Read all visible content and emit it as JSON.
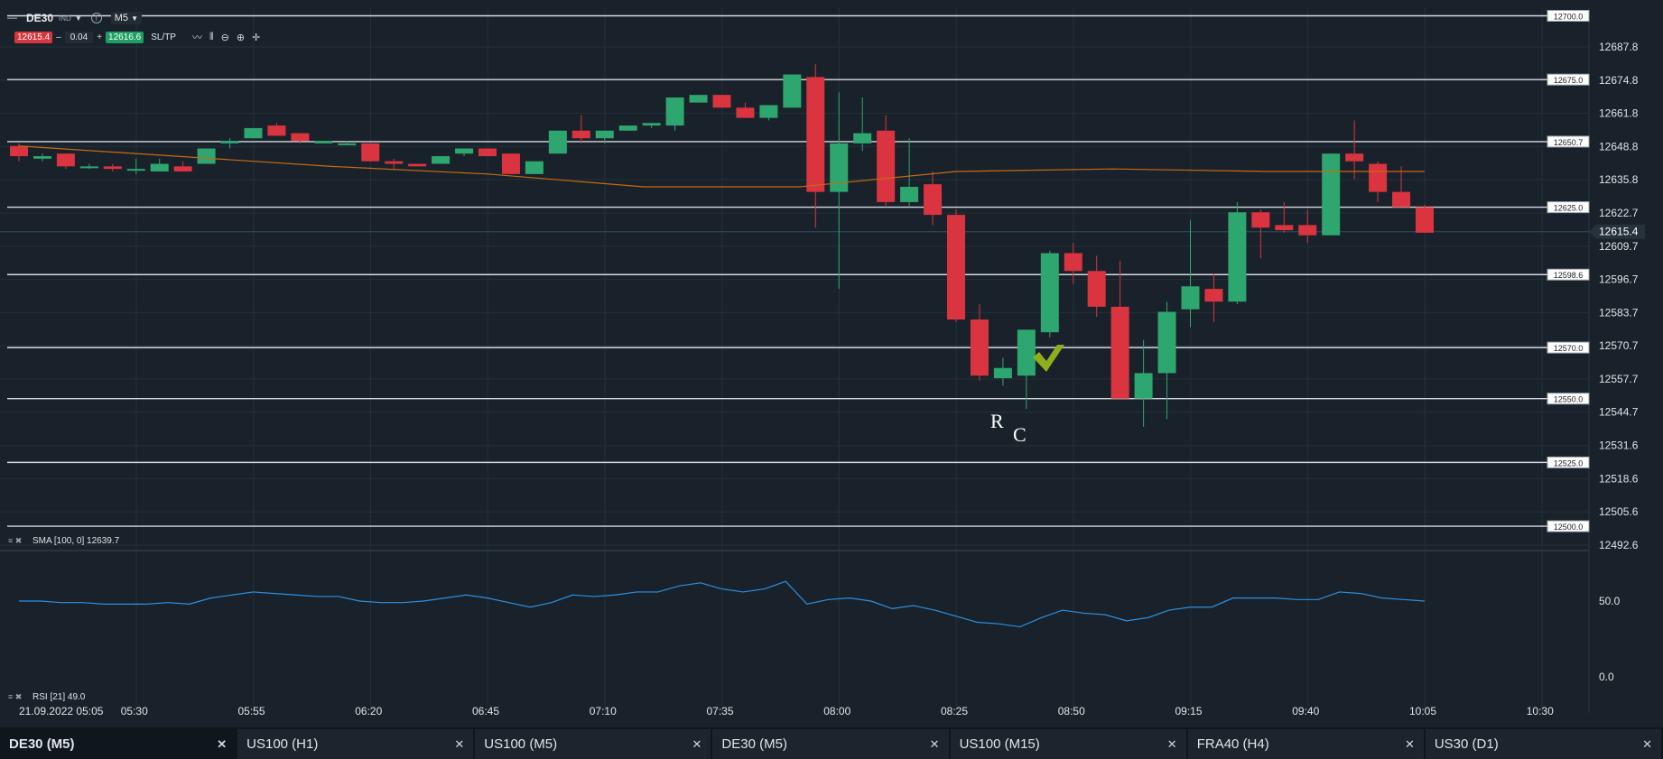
{
  "toolbar": {
    "symbol": "DE30",
    "symbol_type": "IND",
    "timeframe": "M5",
    "sell_price": "12615.4",
    "spread": "0.04",
    "buy_price": "12616.6",
    "sltp_label": "SL/TP"
  },
  "indicators": {
    "sma_label": "SMA [100, 0] 12639.7",
    "rsi_label": "RSI [21] 49.0",
    "rsi_levels": [
      "50.0",
      "0.0"
    ]
  },
  "annotations": {
    "r": "R",
    "c": "C"
  },
  "chart_data": {
    "type": "candlestick",
    "x_start_label": "21.09.2022 05:05",
    "time_labels": [
      "05:30",
      "05:55",
      "06:20",
      "06:45",
      "07:10",
      "07:35",
      "08:00",
      "08:25",
      "08:50",
      "09:15",
      "09:40",
      "10:05",
      "10:30"
    ],
    "price_scale": [
      "12687.8",
      "12674.8",
      "12661.8",
      "12648.8",
      "12635.8",
      "12622.7",
      "12609.7",
      "12596.7",
      "12583.7",
      "12570.7",
      "12557.7",
      "12544.7",
      "12531.6",
      "12518.6",
      "12505.6",
      "12492.6"
    ],
    "current_price": "12615.4",
    "levels": [
      "12700.0",
      "12675.0",
      "12650.7",
      "12625.0",
      "12598.6",
      "12570.0",
      "12550.0",
      "12525.0",
      "12500.0"
    ],
    "candles": [
      [
        12649,
        12650,
        12643,
        12645
      ],
      [
        12644,
        12646,
        12643,
        12645
      ],
      [
        12646,
        12646,
        12640,
        12641
      ],
      [
        12641,
        12642,
        12640,
        12641
      ],
      [
        12641,
        12642,
        12639,
        12640
      ],
      [
        12640,
        12644,
        12638,
        12640
      ],
      [
        12639,
        12644,
        12639,
        12642
      ],
      [
        12641,
        12643,
        12639,
        12639
      ],
      [
        12642,
        12648,
        12642,
        12648
      ],
      [
        12650,
        12652,
        12648,
        12651
      ],
      [
        12652,
        12656,
        12652,
        12656
      ],
      [
        12657,
        12658,
        12653,
        12653
      ],
      [
        12654,
        12654,
        12650,
        12651
      ],
      [
        12650,
        12651,
        12650,
        12651
      ],
      [
        12650,
        12651,
        12650,
        12650
      ],
      [
        12650,
        12650,
        12643,
        12643
      ],
      [
        12643,
        12644,
        12640,
        12642
      ],
      [
        12642,
        12642,
        12641,
        12641
      ],
      [
        12642,
        12645,
        12642,
        12645
      ],
      [
        12646,
        12648,
        12645,
        12648
      ],
      [
        12648,
        12648,
        12645,
        12645
      ],
      [
        12646,
        12646,
        12638,
        12638
      ],
      [
        12638,
        12643,
        12638,
        12643
      ],
      [
        12646,
        12655,
        12646,
        12655
      ],
      [
        12655,
        12661,
        12650,
        12652
      ],
      [
        12652,
        12655,
        12650,
        12655
      ],
      [
        12655,
        12657,
        12655,
        12657
      ],
      [
        12657,
        12658,
        12656,
        12658
      ],
      [
        12657,
        12668,
        12655,
        12668
      ],
      [
        12666,
        12669,
        12666,
        12669
      ],
      [
        12669,
        12669,
        12664,
        12664
      ],
      [
        12664,
        12666,
        12660,
        12660
      ],
      [
        12660,
        12665,
        12659,
        12665
      ],
      [
        12664,
        12677,
        12664,
        12677
      ],
      [
        12676,
        12681,
        12617,
        12631
      ],
      [
        12631,
        12670,
        12593,
        12650
      ],
      [
        12650,
        12668,
        12647,
        12654
      ],
      [
        12655,
        12661,
        12625,
        12627
      ],
      [
        12627,
        12652,
        12625,
        12633
      ],
      [
        12634,
        12639,
        12618,
        12622
      ],
      [
        12622,
        12624,
        12580,
        12581
      ],
      [
        12581,
        12587,
        12557,
        12559
      ],
      [
        12558,
        12566,
        12555,
        12562
      ],
      [
        12559,
        12576,
        12546,
        12577
      ],
      [
        12576,
        12608,
        12574,
        12607
      ],
      [
        12607,
        12611,
        12595,
        12600
      ],
      [
        12600,
        12606,
        12582,
        12586
      ],
      [
        12586,
        12604,
        12550,
        12550
      ],
      [
        12550,
        12573,
        12539,
        12560
      ],
      [
        12560,
        12588,
        12542,
        12584
      ],
      [
        12585,
        12620,
        12578,
        12594
      ],
      [
        12593,
        12599,
        12580,
        12588
      ],
      [
        12588,
        12627,
        12587,
        12623
      ],
      [
        12623,
        12624,
        12605,
        12617
      ],
      [
        12618,
        12627,
        12615,
        12616
      ],
      [
        12618,
        12624,
        12611,
        12614
      ],
      [
        12614,
        12646,
        12614,
        12646
      ],
      [
        12646,
        12659,
        12636,
        12643
      ],
      [
        12642,
        12643,
        12627,
        12631
      ],
      [
        12631,
        12641,
        12625,
        12625
      ],
      [
        12625,
        12626,
        12615,
        12615
      ]
    ],
    "sma": [
      12649,
      12645,
      12641,
      12638,
      12633,
      12633,
      12639,
      12640,
      12639,
      12639
    ],
    "rsi": [
      50,
      50,
      49,
      49,
      48,
      48,
      48,
      49,
      48,
      52,
      54,
      56,
      55,
      54,
      53,
      53,
      50,
      49,
      49,
      50,
      52,
      54,
      52,
      49,
      46,
      49,
      54,
      53,
      54,
      56,
      56,
      60,
      62,
      58,
      56,
      58,
      63,
      48,
      51,
      52,
      50,
      45,
      47,
      44,
      40,
      36,
      35,
      33,
      39,
      44,
      42,
      41,
      37,
      39,
      44,
      46,
      46,
      52,
      52,
      52,
      51,
      51,
      56,
      55,
      52,
      51,
      50
    ]
  },
  "tabs": [
    {
      "label": "DE30 (M5)",
      "active": true
    },
    {
      "label": "US100 (H1)"
    },
    {
      "label": "US100 (M5)"
    },
    {
      "label": "DE30 (M5)"
    },
    {
      "label": "US100 (M15)"
    },
    {
      "label": "FRA40 (H4)"
    },
    {
      "label": "US30 (D1)"
    }
  ],
  "colors": {
    "bull": "#2ea66f",
    "bear": "#d9343f",
    "sma": "#c66a14",
    "rsi": "#2d8fe0",
    "bg": "#19222a"
  }
}
